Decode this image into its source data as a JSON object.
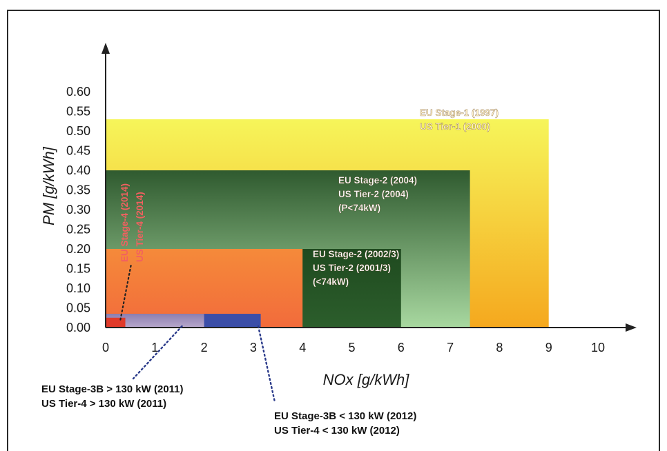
{
  "chart_data": {
    "type": "area",
    "xlabel": "NOx  [g/kWh]",
    "ylabel": "PM  [g/kWh]",
    "xlim": [
      0,
      10
    ],
    "ylim": [
      0,
      0.6
    ],
    "x_ticks": [
      "0",
      "1",
      "2",
      "3",
      "4",
      "5",
      "6",
      "7",
      "8",
      "9",
      "10"
    ],
    "y_ticks": [
      "0.00",
      "0.05",
      "0.10",
      "0.15",
      "0.20",
      "0.25",
      "0.30",
      "0.35",
      "0.40",
      "0.45",
      "0.50",
      "0.55",
      "0.60"
    ],
    "regions": [
      {
        "nox_max": 9.0,
        "pm_max": 0.53,
        "color_top": "#f6f55a",
        "color_bottom": "#f5a81e",
        "lines": [
          "EU Stage-1 (1997)",
          "US Tier-1 (2000)"
        ],
        "label_color": "#fff1c8"
      },
      {
        "nox_max": 7.4,
        "pm_max": 0.4,
        "color_top": "#2f5a2f",
        "color_bottom": "#a8d8a0",
        "lines": [
          "EU Stage-2 (2004)",
          "US Tier-2 (2004)",
          "(P<74kW)"
        ],
        "label_color": "#ffffff"
      },
      {
        "nox_max": 6.0,
        "pm_max": 0.2,
        "color_top": "#1f4a1f",
        "color_bottom": "#2c5e2c",
        "lines": [
          "EU Stage-2 (2002/3)",
          "US Tier-2 (2001/3)",
          "(<74kW)"
        ],
        "label_color": "#ffffff"
      },
      {
        "nox_max": 4.0,
        "pm_max": 0.2,
        "color_top": "#f58a3a",
        "color_bottom": "#f26b3b",
        "lines": [],
        "label_color": "#ffffff"
      },
      {
        "nox_max": 3.15,
        "pm_max": 0.035,
        "color_top": "#3b4ea8",
        "color_bottom": "#3b4ea8",
        "lines": [],
        "label_color": "#ffffff"
      },
      {
        "nox_max": 2.0,
        "pm_max": 0.035,
        "color_top": "#8c7fb0",
        "color_bottom": "#b8a8cc",
        "lines": [],
        "label_color": "#ffffff"
      },
      {
        "nox_max": 0.4,
        "pm_max": 0.025,
        "color_top": "#e03a2a",
        "color_bottom": "#e03a2a",
        "lines": [],
        "label_color": "#ffffff"
      }
    ],
    "vertical_label": {
      "lines": [
        "EU Stage-4 (2014)",
        "US Tier-4 (2014)"
      ],
      "color": "#f26060"
    },
    "annotations": [
      {
        "lines": [
          "EU Stage-3B > 130 kW  (2011)",
          "US Tier-4  > 130 kW (2011)"
        ],
        "point_nox": 1.55,
        "point_pm": 0.0
      },
      {
        "lines": [
          "EU Stage-3B < 130 kW  (2012)",
          "US Tier-4  < 130 kW (2012)"
        ],
        "point_nox": 3.1,
        "point_pm": 0.0
      }
    ],
    "stage4_point": {
      "nox": 0.3,
      "pm": 0.02
    }
  }
}
